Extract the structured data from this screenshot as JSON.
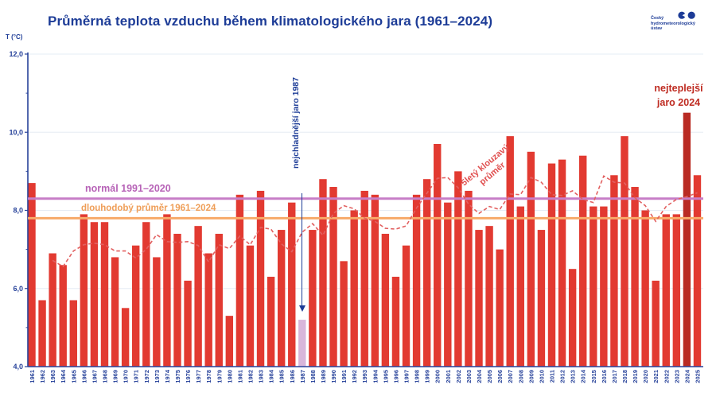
{
  "header": {
    "title": "Průměrná teplota vzduchu během klimatologického jara (1961–2024)",
    "logo": {
      "line1": "Český",
      "line2": "hydrometeorologický",
      "line3": "ústav"
    }
  },
  "chart_data": {
    "type": "bar",
    "title": "Průměrná teplota vzduchu během klimatologického jara (1961–2024)",
    "ylabel": "T (°C)",
    "xlabel": "",
    "ylim": [
      4.0,
      12.0
    ],
    "grid": "horizontal lines every 2 °C, light",
    "yticks": [
      {
        "value": 12.0,
        "label": "12,0"
      },
      {
        "value": 10.0,
        "label": "10,0"
      },
      {
        "value": 8.0,
        "label": "8,0"
      },
      {
        "value": 6.0,
        "label": "6,0"
      },
      {
        "value": 4.0,
        "label": "4,0"
      }
    ],
    "bar_color": "#e23a31",
    "axis_color": "#27429a",
    "grid_color": "#e5ecf4",
    "years": [
      1961,
      1962,
      1963,
      1964,
      1965,
      1966,
      1967,
      1968,
      1969,
      1970,
      1971,
      1972,
      1973,
      1974,
      1975,
      1976,
      1977,
      1978,
      1979,
      1980,
      1981,
      1982,
      1983,
      1984,
      1985,
      1986,
      1987,
      1988,
      1989,
      1990,
      1991,
      1992,
      1993,
      1994,
      1995,
      1996,
      1997,
      1998,
      1999,
      2000,
      2001,
      2002,
      2003,
      2004,
      2005,
      2006,
      2007,
      2008,
      2009,
      2010,
      2011,
      2012,
      2013,
      2014,
      2015,
      2016,
      2017,
      2018,
      2019,
      2020,
      2021,
      2022,
      2023,
      2024,
      2025
    ],
    "values": [
      8.7,
      5.7,
      6.9,
      6.6,
      5.7,
      7.9,
      7.7,
      7.7,
      6.8,
      5.5,
      7.1,
      7.7,
      6.8,
      7.9,
      7.4,
      6.2,
      7.6,
      6.9,
      7.4,
      5.3,
      8.4,
      7.1,
      8.5,
      6.3,
      7.5,
      8.2,
      5.2,
      7.5,
      8.8,
      8.6,
      6.7,
      8.0,
      8.5,
      8.4,
      7.4,
      6.3,
      7.1,
      8.4,
      8.8,
      9.7,
      8.2,
      9.0,
      8.5,
      7.5,
      7.6,
      7.0,
      9.9,
      8.1,
      9.5,
      7.5,
      9.2,
      9.3,
      6.5,
      9.4,
      8.1,
      8.1,
      8.9,
      9.9,
      8.6,
      8.0,
      6.2,
      7.9,
      7.9,
      10.5,
      8.9
    ],
    "highlights": {
      "coldest": {
        "year": 1987,
        "value": 5.2,
        "annotation": "nejchladnější jaro 1987",
        "bar_color": "#d8b6da",
        "text_color": "#1d3c97"
      },
      "warmest": {
        "year": 2024,
        "value": 10.5,
        "annotation_line1": "nejteplejší",
        "annotation_line2": "jaro 2024",
        "bar_color": "#b92b23",
        "text_color": "#bf2c22"
      }
    },
    "reference_lines": [
      {
        "label": "normál 1991–2020",
        "value": 8.3,
        "color": "#c77ec7",
        "text_color": "#b763b7"
      },
      {
        "label": "dlouhodobý průměr 1961–2024",
        "value": 7.8,
        "color": "#f7aa69",
        "text_color": "#ef9e58"
      }
    ],
    "moving_average": {
      "label_line1": "5letý klouzavý",
      "label_line2": "průměr",
      "color": "#e26161",
      "style": "dashed",
      "years": [
        1963,
        1964,
        1965,
        1966,
        1967,
        1968,
        1969,
        1970,
        1971,
        1972,
        1973,
        1974,
        1975,
        1976,
        1977,
        1978,
        1979,
        1980,
        1981,
        1982,
        1983,
        1984,
        1985,
        1986,
        1987,
        1988,
        1989,
        1990,
        1991,
        1992,
        1993,
        1994,
        1995,
        1996,
        1997,
        1998,
        1999,
        2000,
        2001,
        2002,
        2003,
        2004,
        2005,
        2006,
        2007,
        2008,
        2009,
        2010,
        2011,
        2012,
        2013,
        2014,
        2015,
        2016,
        2017,
        2018,
        2019,
        2020,
        2021,
        2022,
        2023,
        2024,
        2025
      ],
      "values": [
        6.72,
        6.56,
        6.96,
        7.12,
        7.16,
        7.12,
        6.96,
        6.96,
        6.78,
        7.0,
        7.38,
        7.2,
        7.18,
        7.2,
        7.1,
        6.68,
        7.12,
        7.02,
        7.34,
        7.12,
        7.56,
        7.52,
        7.14,
        6.94,
        7.44,
        7.66,
        7.36,
        7.92,
        8.12,
        8.04,
        7.8,
        7.72,
        7.54,
        7.52,
        7.6,
        8.06,
        8.44,
        8.82,
        8.84,
        8.58,
        8.16,
        7.92,
        8.1,
        8.02,
        8.42,
        8.4,
        8.84,
        8.72,
        8.4,
        8.38,
        8.5,
        8.28,
        8.2,
        8.88,
        8.72,
        8.7,
        8.32,
        8.12,
        7.72,
        8.1,
        8.28,
        8.35,
        8.45
      ]
    }
  }
}
